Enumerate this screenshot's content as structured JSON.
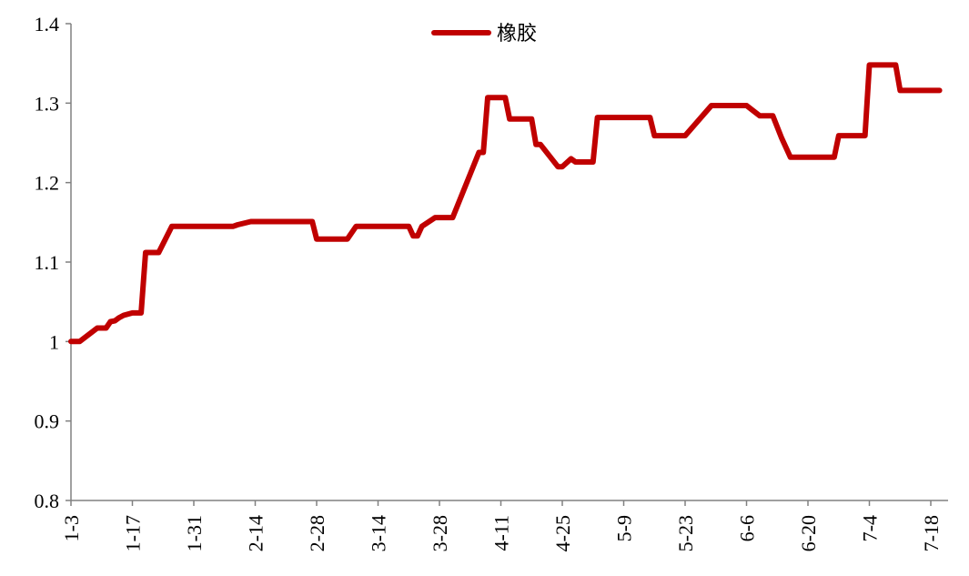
{
  "chart_data": {
    "type": "line",
    "legend": "top-center",
    "grid": false,
    "ylim": [
      0.8,
      1.4
    ],
    "y_ticks": [
      "0.8",
      "0.9",
      "1",
      "1.1",
      "1.2",
      "1.3",
      "1.4"
    ],
    "x_ticks": [
      "1-3",
      "1-17",
      "1-31",
      "2-14",
      "2-28",
      "3-14",
      "3-28",
      "4-11",
      "4-25",
      "5-9",
      "5-23",
      "6-6",
      "6-20",
      "7-4",
      "7-18"
    ],
    "colors": {
      "series": "#c00000",
      "axis": "#808080"
    },
    "series": [
      {
        "name": "橡胶",
        "x": [
          "1-3",
          "1-5",
          "1-9",
          "1-11",
          "1-12",
          "1-13",
          "1-14",
          "1-15",
          "1-17",
          "1-18",
          "1-19",
          "1-20",
          "1-21",
          "1-23",
          "1-26",
          "1-27",
          "1-28",
          "1-29",
          "1-30",
          "1-31",
          "2-9",
          "2-10",
          "2-13",
          "2-14",
          "2-22",
          "2-27",
          "2-28",
          "3-1",
          "3-7",
          "3-9",
          "3-10",
          "3-16",
          "3-21",
          "3-22",
          "3-23",
          "3-24",
          "3-27",
          "3-28",
          "3-31",
          "4-6",
          "4-7",
          "4-8",
          "4-12",
          "4-13",
          "4-18",
          "4-19",
          "4-20",
          "4-24",
          "4-25",
          "4-27",
          "4-28",
          "5-2",
          "5-3",
          "5-11",
          "5-15",
          "5-16",
          "5-23",
          "5-29",
          "6-6",
          "6-9",
          "6-12",
          "6-14",
          "6-15",
          "6-16",
          "6-20",
          "6-26",
          "6-27",
          "6-30",
          "7-3",
          "7-4",
          "7-10",
          "7-11",
          "7-20"
        ],
        "values": [
          1.0,
          1.0,
          1.017,
          1.017,
          1.025,
          1.026,
          1.03,
          1.033,
          1.036,
          1.036,
          1.036,
          1.112,
          1.112,
          1.112,
          1.145,
          1.145,
          1.145,
          1.145,
          1.145,
          1.145,
          1.145,
          1.147,
          1.151,
          1.151,
          1.151,
          1.151,
          1.129,
          1.129,
          1.129,
          1.145,
          1.145,
          1.145,
          1.145,
          1.133,
          1.133,
          1.145,
          1.156,
          1.156,
          1.156,
          1.238,
          1.238,
          1.307,
          1.307,
          1.28,
          1.28,
          1.248,
          1.248,
          1.22,
          1.22,
          1.23,
          1.226,
          1.226,
          1.282,
          1.282,
          1.282,
          1.259,
          1.259,
          1.297,
          1.297,
          1.284,
          1.284,
          1.256,
          1.244,
          1.232,
          1.232,
          1.232,
          1.259,
          1.259,
          1.259,
          1.348,
          1.348,
          1.316,
          1.316
        ]
      }
    ]
  }
}
